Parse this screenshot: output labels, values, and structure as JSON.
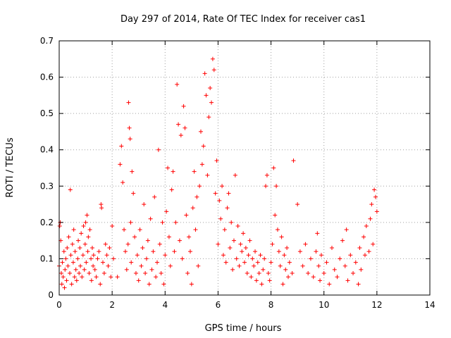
{
  "chart_data": {
    "type": "scatter",
    "title": "Day 297 of 2014, Rate Of TEC Index for receiver cas1",
    "xlabel": "GPS time / hours",
    "ylabel": "ROTI / TECUs",
    "xlim": [
      0,
      14
    ],
    "ylim": [
      0,
      0.7
    ],
    "xticks": [
      0,
      2,
      4,
      6,
      8,
      10,
      12,
      14
    ],
    "yticks": [
      0,
      0.1,
      0.2,
      0.3,
      0.4,
      0.5,
      0.6,
      0.7
    ],
    "xtick_labels": [
      "0",
      "2",
      "4",
      "6",
      "8",
      "10",
      "12",
      "14"
    ],
    "ytick_labels": [
      "0",
      "0.1",
      "0.2",
      "0.3",
      "0.4",
      "0.5",
      "0.6",
      "0.7"
    ],
    "grid": true,
    "marker": "+",
    "color": "#ff0000",
    "series": [
      {
        "name": "cas1",
        "points": [
          [
            0.0,
            0.08
          ],
          [
            0.02,
            0.19
          ],
          [
            0.04,
            0.2
          ],
          [
            0.06,
            0.15
          ],
          [
            0.08,
            0.06
          ],
          [
            0.1,
            0.03
          ],
          [
            0.12,
            0.09
          ],
          [
            0.15,
            0.05
          ],
          [
            0.18,
            0.12
          ],
          [
            0.2,
            0.02
          ],
          [
            0.22,
            0.07
          ],
          [
            0.25,
            0.1
          ],
          [
            0.28,
            0.04
          ],
          [
            0.3,
            0.13
          ],
          [
            0.33,
            0.08
          ],
          [
            0.36,
            0.16
          ],
          [
            0.4,
            0.06
          ],
          [
            0.42,
            0.29
          ],
          [
            0.44,
            0.11
          ],
          [
            0.47,
            0.03
          ],
          [
            0.5,
            0.14
          ],
          [
            0.53,
            0.09
          ],
          [
            0.55,
            0.18
          ],
          [
            0.58,
            0.05
          ],
          [
            0.6,
            0.12
          ],
          [
            0.63,
            0.07
          ],
          [
            0.66,
            0.04
          ],
          [
            0.7,
            0.1
          ],
          [
            0.72,
            0.15
          ],
          [
            0.75,
            0.06
          ],
          [
            0.78,
            0.13
          ],
          [
            0.8,
            0.08
          ],
          [
            0.83,
            0.17
          ],
          [
            0.86,
            0.05
          ],
          [
            0.9,
            0.11
          ],
          [
            0.92,
            0.19
          ],
          [
            0.95,
            0.07
          ],
          [
            0.98,
            0.14
          ],
          [
            1.0,
            0.2
          ],
          [
            1.02,
            0.09
          ],
          [
            1.05,
            0.22
          ],
          [
            1.08,
            0.12
          ],
          [
            1.1,
            0.16
          ],
          [
            1.13,
            0.06
          ],
          [
            1.16,
            0.18
          ],
          [
            1.2,
            0.1
          ],
          [
            1.22,
            0.04
          ],
          [
            1.25,
            0.13
          ],
          [
            1.28,
            0.08
          ],
          [
            1.3,
            0.11
          ],
          [
            1.35,
            0.07
          ],
          [
            1.4,
            0.05
          ],
          [
            1.45,
            0.1
          ],
          [
            1.5,
            0.12
          ],
          [
            1.55,
            0.03
          ],
          [
            1.58,
            0.25
          ],
          [
            1.6,
            0.24
          ],
          [
            1.65,
            0.09
          ],
          [
            1.7,
            0.06
          ],
          [
            1.75,
            0.14
          ],
          [
            1.8,
            0.11
          ],
          [
            1.85,
            0.08
          ],
          [
            1.9,
            0.13
          ],
          [
            1.95,
            0.05
          ],
          [
            2.0,
            0.19
          ],
          [
            2.05,
            0.1
          ],
          [
            2.2,
            0.05
          ],
          [
            2.3,
            0.36
          ],
          [
            2.35,
            0.41
          ],
          [
            2.4,
            0.31
          ],
          [
            2.45,
            0.18
          ],
          [
            2.5,
            0.12
          ],
          [
            2.55,
            0.07
          ],
          [
            2.6,
            0.14
          ],
          [
            2.62,
            0.53
          ],
          [
            2.65,
            0.46
          ],
          [
            2.68,
            0.43
          ],
          [
            2.7,
            0.2
          ],
          [
            2.72,
            0.09
          ],
          [
            2.75,
            0.34
          ],
          [
            2.8,
            0.28
          ],
          [
            2.85,
            0.16
          ],
          [
            2.9,
            0.06
          ],
          [
            2.95,
            0.11
          ],
          [
            3.0,
            0.04
          ],
          [
            3.05,
            0.18
          ],
          [
            3.1,
            0.08
          ],
          [
            3.15,
            0.13
          ],
          [
            3.2,
            0.25
          ],
          [
            3.25,
            0.06
          ],
          [
            3.3,
            0.1
          ],
          [
            3.35,
            0.15
          ],
          [
            3.4,
            0.03
          ],
          [
            3.45,
            0.21
          ],
          [
            3.5,
            0.07
          ],
          [
            3.55,
            0.12
          ],
          [
            3.6,
            0.27
          ],
          [
            3.65,
            0.05
          ],
          [
            3.7,
            0.09
          ],
          [
            3.75,
            0.4
          ],
          [
            3.8,
            0.14
          ],
          [
            3.85,
            0.06
          ],
          [
            3.9,
            0.2
          ],
          [
            3.95,
            0.03
          ],
          [
            4.0,
            0.11
          ],
          [
            4.05,
            0.23
          ],
          [
            4.1,
            0.35
          ],
          [
            4.15,
            0.16
          ],
          [
            4.2,
            0.08
          ],
          [
            4.25,
            0.29
          ],
          [
            4.3,
            0.34
          ],
          [
            4.35,
            0.12
          ],
          [
            4.4,
            0.2
          ],
          [
            4.45,
            0.58
          ],
          [
            4.5,
            0.47
          ],
          [
            4.55,
            0.15
          ],
          [
            4.6,
            0.44
          ],
          [
            4.65,
            0.1
          ],
          [
            4.7,
            0.52
          ],
          [
            4.75,
            0.46
          ],
          [
            4.8,
            0.22
          ],
          [
            4.85,
            0.06
          ],
          [
            4.9,
            0.16
          ],
          [
            4.95,
            0.12
          ],
          [
            5.0,
            0.03
          ],
          [
            5.05,
            0.24
          ],
          [
            5.1,
            0.34
          ],
          [
            5.15,
            0.18
          ],
          [
            5.2,
            0.27
          ],
          [
            5.25,
            0.08
          ],
          [
            5.3,
            0.3
          ],
          [
            5.35,
            0.45
          ],
          [
            5.4,
            0.36
          ],
          [
            5.45,
            0.41
          ],
          [
            5.5,
            0.61
          ],
          [
            5.55,
            0.55
          ],
          [
            5.6,
            0.33
          ],
          [
            5.65,
            0.49
          ],
          [
            5.7,
            0.57
          ],
          [
            5.75,
            0.53
          ],
          [
            5.8,
            0.65
          ],
          [
            5.85,
            0.62
          ],
          [
            5.9,
            0.28
          ],
          [
            5.95,
            0.37
          ],
          [
            6.0,
            0.14
          ],
          [
            6.05,
            0.26
          ],
          [
            6.1,
            0.21
          ],
          [
            6.15,
            0.3
          ],
          [
            6.2,
            0.11
          ],
          [
            6.25,
            0.18
          ],
          [
            6.3,
            0.09
          ],
          [
            6.35,
            0.24
          ],
          [
            6.4,
            0.28
          ],
          [
            6.45,
            0.13
          ],
          [
            6.5,
            0.2
          ],
          [
            6.55,
            0.07
          ],
          [
            6.6,
            0.15
          ],
          [
            6.65,
            0.33
          ],
          [
            6.7,
            0.1
          ],
          [
            6.75,
            0.19
          ],
          [
            6.8,
            0.08
          ],
          [
            6.85,
            0.14
          ],
          [
            6.9,
            0.12
          ],
          [
            6.95,
            0.17
          ],
          [
            7.0,
            0.09
          ],
          [
            7.05,
            0.13
          ],
          [
            7.1,
            0.06
          ],
          [
            7.15,
            0.11
          ],
          [
            7.2,
            0.15
          ],
          [
            7.25,
            0.05
          ],
          [
            7.3,
            0.1
          ],
          [
            7.35,
            0.08
          ],
          [
            7.4,
            0.12
          ],
          [
            7.45,
            0.04
          ],
          [
            7.5,
            0.09
          ],
          [
            7.55,
            0.06
          ],
          [
            7.6,
            0.11
          ],
          [
            7.65,
            0.03
          ],
          [
            7.7,
            0.07
          ],
          [
            7.75,
            0.1
          ],
          [
            7.8,
            0.3
          ],
          [
            7.85,
            0.33
          ],
          [
            7.9,
            0.06
          ],
          [
            7.95,
            0.04
          ],
          [
            8.0,
            0.09
          ],
          [
            8.05,
            0.14
          ],
          [
            8.1,
            0.35
          ],
          [
            8.15,
            0.22
          ],
          [
            8.2,
            0.3
          ],
          [
            8.25,
            0.18
          ],
          [
            8.3,
            0.12
          ],
          [
            8.35,
            0.08
          ],
          [
            8.4,
            0.16
          ],
          [
            8.45,
            0.03
          ],
          [
            8.5,
            0.11
          ],
          [
            8.55,
            0.07
          ],
          [
            8.6,
            0.13
          ],
          [
            8.65,
            0.05
          ],
          [
            8.7,
            0.09
          ],
          [
            8.8,
            0.06
          ],
          [
            8.85,
            0.37
          ],
          [
            9.0,
            0.25
          ],
          [
            9.1,
            0.12
          ],
          [
            9.2,
            0.08
          ],
          [
            9.3,
            0.14
          ],
          [
            9.4,
            0.06
          ],
          [
            9.5,
            0.1
          ],
          [
            9.6,
            0.05
          ],
          [
            9.7,
            0.12
          ],
          [
            9.75,
            0.17
          ],
          [
            9.8,
            0.08
          ],
          [
            9.85,
            0.04
          ],
          [
            9.9,
            0.11
          ],
          [
            10.0,
            0.06
          ],
          [
            10.1,
            0.09
          ],
          [
            10.2,
            0.03
          ],
          [
            10.3,
            0.13
          ],
          [
            10.4,
            0.07
          ],
          [
            10.5,
            0.05
          ],
          [
            10.6,
            0.1
          ],
          [
            10.7,
            0.15
          ],
          [
            10.8,
            0.08
          ],
          [
            10.85,
            0.18
          ],
          [
            10.9,
            0.04
          ],
          [
            11.0,
            0.11
          ],
          [
            11.1,
            0.06
          ],
          [
            11.2,
            0.09
          ],
          [
            11.3,
            0.03
          ],
          [
            11.35,
            0.13
          ],
          [
            11.4,
            0.07
          ],
          [
            11.5,
            0.16
          ],
          [
            11.55,
            0.11
          ],
          [
            11.6,
            0.19
          ],
          [
            11.7,
            0.12
          ],
          [
            11.75,
            0.21
          ],
          [
            11.8,
            0.25
          ],
          [
            11.85,
            0.14
          ],
          [
            11.9,
            0.29
          ],
          [
            11.95,
            0.27
          ],
          [
            12.0,
            0.23
          ]
        ]
      }
    ]
  }
}
